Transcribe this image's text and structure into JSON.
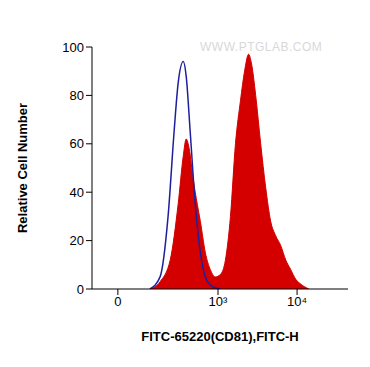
{
  "chart_data": {
    "type": "area",
    "x_label": "FITC-65220(CD81),FITC-H",
    "y_label": "Relative Cell Number",
    "annotations": [
      "WWW.PTGLAB.COM"
    ],
    "xlim": [
      -90,
      44000
    ],
    "xticks": [
      0,
      {
        "value": 1000,
        "label": "10³"
      },
      {
        "value": 10000,
        "label": "10⁴"
      }
    ],
    "ylim": [
      0,
      100
    ],
    "yticks": [
      0,
      20,
      40,
      60,
      80,
      100
    ],
    "grid": false,
    "series": [
      {
        "type": "area",
        "color": "#d40000",
        "x": [
          117,
          170,
          238,
          305,
          357,
          390,
          427,
          483,
          544,
          595,
          690,
          799,
          926,
          1073,
          1243,
          1439,
          1665,
          1930,
          2170,
          2440,
          2660,
          3000,
          3470,
          4010,
          4640,
          5370,
          6210,
          7190,
          8320,
          9630,
          11160,
          14100
        ],
        "values": [
          0,
          3,
          12,
          35,
          55,
          62,
          58,
          45,
          35,
          28,
          15,
          8,
          5,
          6,
          12,
          30,
          60,
          78,
          90,
          97,
          93,
          80,
          60,
          42,
          28,
          22,
          18,
          12,
          8,
          4,
          2,
          0
        ]
      },
      {
        "type": "line",
        "color": "#1f1f9e",
        "x": [
          117,
          170,
          222,
          269,
          305,
          357,
          390,
          440,
          512,
          595,
          690,
          848,
          1073
        ],
        "values": [
          0,
          5,
          30,
          65,
          85,
          94,
          88,
          65,
          35,
          15,
          5,
          1,
          0
        ]
      }
    ]
  }
}
